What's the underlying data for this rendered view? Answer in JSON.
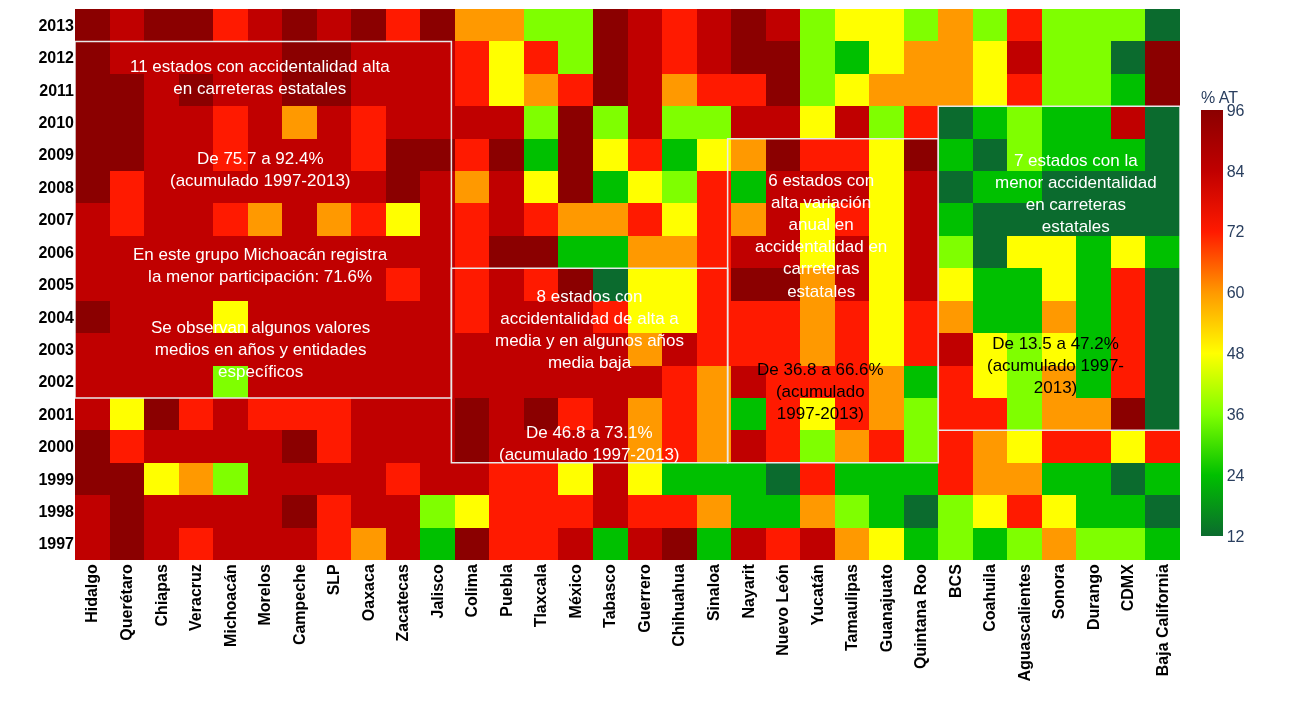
{
  "chart_data": {
    "type": "heatmap",
    "categories": [
      "Hidalgo",
      "Querétaro",
      "Chiapas",
      "Veracruz",
      "Michoacán",
      "Morelos",
      "Campeche",
      "SLP",
      "Oaxaca",
      "Zacatecas",
      "Jalisco",
      "Colima",
      "Puebla",
      "Tlaxcala",
      "México",
      "Tabasco",
      "Guerrero",
      "Chihuahua",
      "Sinaloa",
      "Nayarit",
      "Nuevo León",
      "Yucatán",
      "Tamaulipas",
      "Guanajuato",
      "Quintana Roo",
      "BCS",
      "Coahuila",
      "Aguascalientes",
      "Sonora",
      "Durango",
      "CDMX",
      "Baja California"
    ],
    "y_categories": [
      "2013",
      "2012",
      "2011",
      "2010",
      "2009",
      "2008",
      "2007",
      "2006",
      "2005",
      "2004",
      "2003",
      "2002",
      "2001",
      "2000",
      "1999",
      "1998",
      "1997"
    ],
    "cells": [
      [
        96,
        84,
        96,
        96,
        72,
        84,
        96,
        84,
        96,
        72,
        96,
        60,
        60,
        36,
        36,
        96,
        84,
        72,
        84,
        96,
        84,
        36,
        48,
        48,
        36,
        60,
        36,
        72,
        36,
        36,
        36,
        12
      ],
      [
        96,
        84,
        84,
        84,
        84,
        84,
        96,
        96,
        84,
        84,
        84,
        72,
        48,
        72,
        36,
        96,
        84,
        72,
        84,
        96,
        96,
        36,
        24,
        48,
        60,
        60,
        48,
        84,
        36,
        36,
        12,
        96
      ],
      [
        96,
        96,
        84,
        96,
        84,
        84,
        96,
        96,
        84,
        84,
        84,
        72,
        48,
        60,
        72,
        96,
        84,
        60,
        72,
        72,
        96,
        36,
        48,
        60,
        60,
        60,
        48,
        72,
        36,
        36,
        24,
        96
      ],
      [
        96,
        96,
        84,
        84,
        72,
        84,
        60,
        84,
        72,
        84,
        84,
        84,
        84,
        36,
        96,
        36,
        84,
        36,
        36,
        84,
        84,
        48,
        84,
        36,
        72,
        12,
        24,
        36,
        24,
        24,
        84,
        12
      ],
      [
        96,
        96,
        84,
        84,
        72,
        84,
        84,
        84,
        72,
        96,
        96,
        72,
        96,
        24,
        96,
        48,
        72,
        24,
        48,
        60,
        96,
        72,
        72,
        48,
        96,
        24,
        12,
        36,
        24,
        24,
        24,
        12
      ],
      [
        96,
        72,
        84,
        84,
        84,
        84,
        84,
        84,
        84,
        96,
        84,
        60,
        84,
        48,
        96,
        24,
        48,
        36,
        72,
        24,
        84,
        84,
        84,
        48,
        84,
        12,
        24,
        24,
        12,
        12,
        12,
        12
      ],
      [
        84,
        72,
        84,
        84,
        72,
        60,
        84,
        60,
        72,
        48,
        84,
        72,
        84,
        72,
        60,
        60,
        72,
        48,
        72,
        60,
        84,
        48,
        72,
        48,
        84,
        24,
        12,
        12,
        12,
        12,
        12,
        12
      ],
      [
        84,
        84,
        84,
        84,
        84,
        84,
        84,
        84,
        84,
        84,
        84,
        72,
        96,
        96,
        24,
        24,
        60,
        60,
        72,
        84,
        84,
        48,
        84,
        48,
        84,
        36,
        12,
        48,
        48,
        24,
        48,
        24
      ],
      [
        84,
        84,
        84,
        84,
        84,
        84,
        84,
        84,
        84,
        72,
        84,
        72,
        84,
        72,
        96,
        12,
        48,
        48,
        72,
        96,
        96,
        60,
        84,
        48,
        84,
        48,
        24,
        24,
        48,
        24,
        72,
        12
      ],
      [
        96,
        84,
        84,
        84,
        48,
        84,
        84,
        84,
        84,
        84,
        84,
        72,
        84,
        84,
        84,
        72,
        48,
        48,
        72,
        72,
        72,
        60,
        72,
        48,
        72,
        60,
        24,
        24,
        60,
        24,
        72,
        12
      ],
      [
        84,
        84,
        84,
        84,
        84,
        84,
        84,
        84,
        84,
        84,
        84,
        84,
        84,
        84,
        84,
        84,
        60,
        84,
        72,
        72,
        72,
        60,
        72,
        48,
        72,
        84,
        48,
        36,
        48,
        24,
        72,
        12
      ],
      [
        84,
        84,
        84,
        84,
        36,
        84,
        84,
        84,
        84,
        84,
        84,
        84,
        84,
        84,
        84,
        84,
        84,
        72,
        60,
        84,
        72,
        72,
        72,
        60,
        24,
        72,
        48,
        36,
        60,
        24,
        72,
        12
      ],
      [
        84,
        48,
        96,
        72,
        84,
        72,
        72,
        72,
        84,
        84,
        84,
        96,
        84,
        96,
        72,
        84,
        60,
        72,
        60,
        24,
        72,
        48,
        72,
        60,
        36,
        72,
        72,
        36,
        60,
        60,
        96,
        12
      ],
      [
        96,
        72,
        84,
        84,
        84,
        84,
        96,
        72,
        84,
        84,
        84,
        96,
        84,
        84,
        84,
        84,
        60,
        72,
        60,
        84,
        72,
        36,
        60,
        72,
        36,
        72,
        60,
        48,
        72,
        72,
        48,
        72
      ],
      [
        96,
        96,
        48,
        60,
        36,
        84,
        84,
        84,
        84,
        72,
        84,
        84,
        72,
        72,
        48,
        84,
        48,
        24,
        24,
        24,
        12,
        72,
        24,
        24,
        24,
        72,
        60,
        60,
        24,
        24,
        12,
        24
      ],
      [
        84,
        96,
        84,
        84,
        84,
        84,
        96,
        72,
        84,
        84,
        36,
        48,
        72,
        72,
        72,
        84,
        72,
        72,
        60,
        24,
        24,
        60,
        36,
        24,
        12,
        36,
        48,
        72,
        48,
        24,
        24,
        12
      ],
      [
        84,
        96,
        84,
        72,
        84,
        84,
        84,
        72,
        60,
        84,
        24,
        96,
        72,
        72,
        84,
        24,
        84,
        96,
        24,
        84,
        72,
        84,
        60,
        48,
        24,
        36,
        24,
        36,
        60,
        36,
        36,
        24
      ]
    ],
    "clabel": "% AT",
    "clim": [
      12,
      96
    ],
    "cticks": [
      96,
      84,
      72,
      60,
      48,
      36,
      24,
      12
    ],
    "annotations": [
      "11 estados con accidentalidad alta\nen carreteras estatales",
      "De 75.7 a 92.4%\n(acumulado 1997-2013)",
      "En este grupo Michoacán registra\nla menor participación: 71.6%",
      "Se observan algunos valores\nmedios en años y entidades\nespecíficos",
      "8 estados con\naccidentalidad de alta a\nmedia y en algunos años\nmedia baja",
      "De 46.8 a 73.1%\n(acumulado 1997-2013)",
      "6 estados con\nalta variación\nanual en\naccidentalidad en\ncarreteras\nestatales",
      "De 36.8 a 66.6%\n(acumulado\n1997-2013)",
      "7 estados con la\nmenor accidentalidad\nen carreteras\nestatales",
      "De 13.5 a 47.2%\n(acumulado 1997-\n2013)"
    ]
  }
}
